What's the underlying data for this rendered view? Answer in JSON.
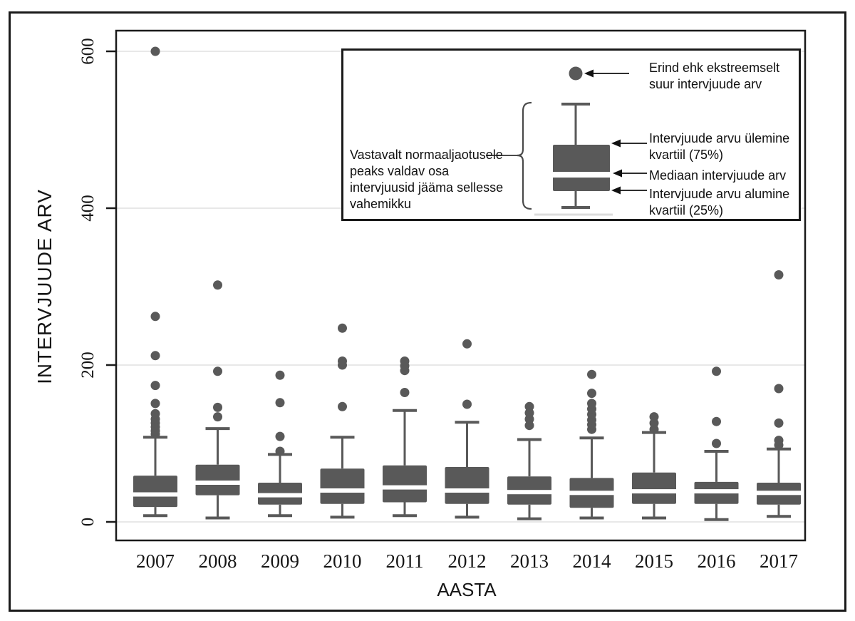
{
  "page": {
    "background": "#ffffff",
    "border_color": "#1a1a1a"
  },
  "chart_data": {
    "type": "boxplot",
    "title": "",
    "xlabel": "AASTA",
    "ylabel": "INTERVJUUDE ARV",
    "y_ticks": [
      0,
      200,
      400,
      600
    ],
    "ylim": [
      -24,
      626
    ],
    "grid": "horizontal-light",
    "legend": "none",
    "categories": [
      "2007",
      "2008",
      "2009",
      "2010",
      "2011",
      "2012",
      "2013",
      "2014",
      "2015",
      "2016",
      "2017"
    ],
    "series": [
      {
        "year": "2007",
        "low": 8,
        "q1": 19,
        "median": 35,
        "q3": 59,
        "high": 108,
        "outliers": [
          112,
          116,
          121,
          126,
          131,
          138,
          151,
          174,
          212,
          262,
          600
        ]
      },
      {
        "year": "2008",
        "low": 5,
        "q1": 34,
        "median": 50,
        "q3": 73,
        "high": 119,
        "outliers": [
          134,
          146,
          192,
          302
        ]
      },
      {
        "year": "2009",
        "low": 8,
        "q1": 22,
        "median": 34,
        "q3": 50,
        "high": 86,
        "outliers": [
          90,
          109,
          152,
          187
        ]
      },
      {
        "year": "2010",
        "low": 6,
        "q1": 23,
        "median": 40,
        "q3": 68,
        "high": 108,
        "outliers": [
          147,
          200,
          205,
          247
        ]
      },
      {
        "year": "2011",
        "low": 8,
        "q1": 25,
        "median": 44,
        "q3": 72,
        "high": 142,
        "outliers": [
          165,
          193,
          199,
          205
        ]
      },
      {
        "year": "2012",
        "low": 6,
        "q1": 23,
        "median": 40,
        "q3": 70,
        "high": 127,
        "outliers": [
          150,
          227
        ]
      },
      {
        "year": "2013",
        "low": 4,
        "q1": 22,
        "median": 38,
        "q3": 58,
        "high": 105,
        "outliers": [
          123,
          131,
          139,
          147
        ]
      },
      {
        "year": "2014",
        "low": 5,
        "q1": 18,
        "median": 37,
        "q3": 56,
        "high": 107,
        "outliers": [
          118,
          124,
          130,
          137,
          144,
          151,
          164,
          188
        ]
      },
      {
        "year": "2015",
        "low": 5,
        "q1": 23,
        "median": 39,
        "q3": 63,
        "high": 114,
        "outliers": [
          118,
          126,
          134
        ]
      },
      {
        "year": "2016",
        "low": 3,
        "q1": 23,
        "median": 39,
        "q3": 51,
        "high": 90,
        "outliers": [
          100,
          128,
          192
        ]
      },
      {
        "year": "2017",
        "low": 7,
        "q1": 22,
        "median": 37,
        "q3": 50,
        "high": 93,
        "outliers": [
          98,
          104,
          126,
          170,
          315
        ]
      }
    ],
    "colors": {
      "box_fill": "#595959",
      "whisker": "#595959",
      "outlier": "#595959",
      "median_line": "#ffffff",
      "gridline": "#e8e8e8",
      "axis": "#1a1a1a",
      "tick_label": "#161616"
    }
  },
  "annotation": {
    "outlier_label": "Erind ehk ekstreemselt\nsuur intervjuude arv",
    "upper_quartile_label": "Intervjuude arvu ülemine\nkvartiil (75%)",
    "median_label": "Mediaan intervjuude arv",
    "lower_quartile_label": "Intervjuude arvu alumine\nkvartiil (25%)",
    "normal_range_label": "Vastavalt normaaljaotusele\npeaks valdav osa\nintervjuusid jääma sellesse\nvahemikku"
  }
}
